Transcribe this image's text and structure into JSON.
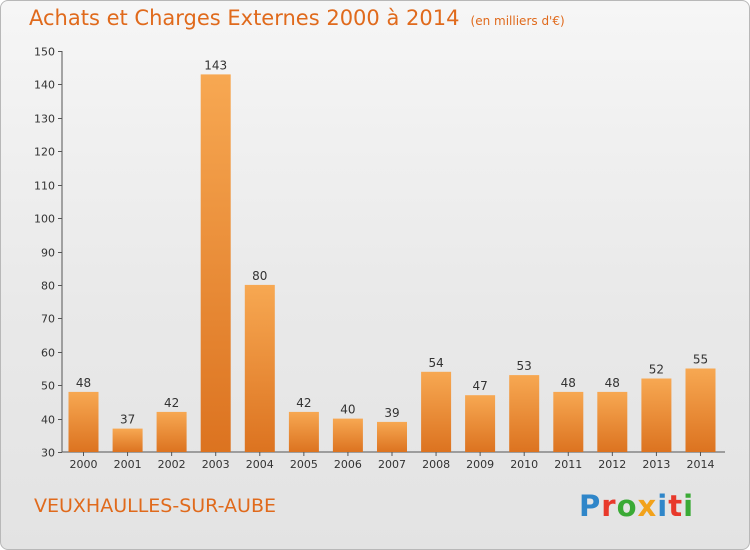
{
  "chart_data": {
    "type": "bar",
    "title": "Achats et Charges Externes 2000 à 2014",
    "subtitle": "(en milliers d'€)",
    "categories": [
      "2000",
      "2001",
      "2002",
      "2003",
      "2004",
      "2005",
      "2006",
      "2007",
      "2008",
      "2009",
      "2010",
      "2011",
      "2012",
      "2013",
      "2014"
    ],
    "values": [
      48,
      37,
      42,
      143,
      80,
      42,
      40,
      39,
      54,
      47,
      53,
      48,
      48,
      52,
      55
    ],
    "xlabel": "",
    "ylabel": "",
    "ylim": [
      30,
      150
    ],
    "yticks": [
      30,
      40,
      50,
      60,
      70,
      80,
      90,
      100,
      110,
      120,
      130,
      140,
      150
    ],
    "grid": false,
    "bar_color": "#f0953a"
  },
  "footer": {
    "commune": "VEUXHAULLES-SUR-AUBE"
  },
  "logo": {
    "text": "Proxiti",
    "colors": [
      "#2f86c9",
      "#e8392b",
      "#3aaa35",
      "#f2a21b",
      "#2f86c9",
      "#e8392b",
      "#3aaa35"
    ]
  }
}
